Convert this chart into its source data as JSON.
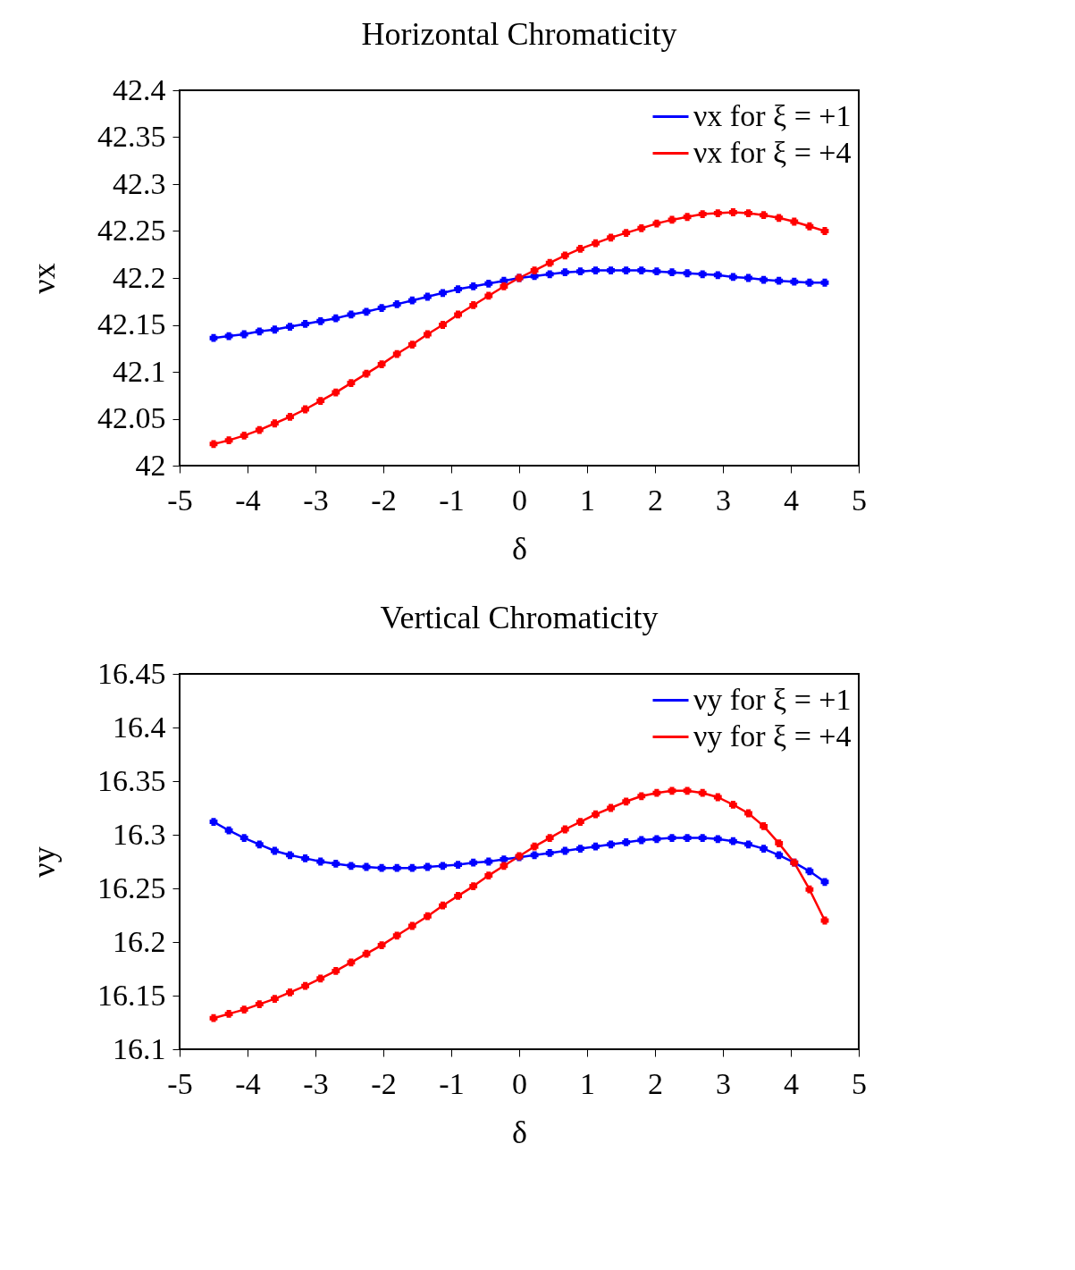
{
  "chart_data": [
    {
      "type": "line",
      "title": "Horizontal Chromaticity",
      "xlabel": "δ",
      "ylabel": "νx",
      "x": [
        -4.5,
        -4.275,
        -4.05,
        -3.825,
        -3.6,
        -3.375,
        -3.15,
        -2.925,
        -2.7,
        -2.475,
        -2.25,
        -2.025,
        -1.8,
        -1.575,
        -1.35,
        -1.125,
        -0.9,
        -0.675,
        -0.45,
        -0.225,
        0,
        0.225,
        0.45,
        0.675,
        0.9,
        1.125,
        1.35,
        1.575,
        1.8,
        2.025,
        2.25,
        2.475,
        2.7,
        2.925,
        3.15,
        3.375,
        3.6,
        3.825,
        4.05,
        4.275,
        4.5
      ],
      "series": [
        {
          "name": "νx for ξ = +1",
          "color": "#0000ff",
          "marker": "cross",
          "values": [
            42.136,
            42.138,
            42.14,
            42.143,
            42.145,
            42.148,
            42.151,
            42.154,
            42.157,
            42.161,
            42.164,
            42.168,
            42.172,
            42.176,
            42.18,
            42.184,
            42.188,
            42.191,
            42.194,
            42.197,
            42.2,
            42.202,
            42.204,
            42.206,
            42.207,
            42.208,
            42.208,
            42.208,
            42.208,
            42.207,
            42.206,
            42.205,
            42.204,
            42.203,
            42.201,
            42.2,
            42.198,
            42.197,
            42.196,
            42.195,
            42.195
          ]
        },
        {
          "name": "νx for ξ = +4",
          "color": "#ff0000",
          "marker": "cross",
          "values": [
            42.023,
            42.027,
            42.032,
            42.038,
            42.045,
            42.052,
            42.06,
            42.069,
            42.078,
            42.088,
            42.098,
            42.108,
            42.119,
            42.129,
            42.14,
            42.15,
            42.161,
            42.171,
            42.181,
            42.191,
            42.2,
            42.208,
            42.216,
            42.224,
            42.231,
            42.237,
            42.243,
            42.248,
            42.253,
            42.258,
            42.262,
            42.265,
            42.268,
            42.269,
            42.27,
            42.269,
            42.267,
            42.264,
            42.26,
            42.255,
            42.25
          ]
        }
      ],
      "xlim": [
        -5,
        5
      ],
      "xticks": [
        -5,
        -4,
        -3,
        -2,
        -1,
        0,
        1,
        2,
        3,
        4,
        5
      ],
      "ylim": [
        42,
        42.4
      ],
      "yticks": [
        42,
        42.05,
        42.1,
        42.15,
        42.2,
        42.25,
        42.3,
        42.35,
        42.4
      ],
      "grid": false,
      "legend": "top right",
      "line_style": "solid"
    },
    {
      "type": "line",
      "title": "Vertical Chromaticity",
      "xlabel": "δ",
      "ylabel": "νy",
      "x": [
        -4.5,
        -4.275,
        -4.05,
        -3.825,
        -3.6,
        -3.375,
        -3.15,
        -2.925,
        -2.7,
        -2.475,
        -2.25,
        -2.025,
        -1.8,
        -1.575,
        -1.35,
        -1.125,
        -0.9,
        -0.675,
        -0.45,
        -0.225,
        0,
        0.225,
        0.45,
        0.675,
        0.9,
        1.125,
        1.35,
        1.575,
        1.8,
        2.025,
        2.25,
        2.475,
        2.7,
        2.925,
        3.15,
        3.375,
        3.6,
        3.825,
        4.05,
        4.275,
        4.5
      ],
      "series": [
        {
          "name": "νy for ξ = +1",
          "color": "#0000ff",
          "marker": "cross",
          "values": [
            16.312,
            16.304,
            16.297,
            16.291,
            16.285,
            16.281,
            16.278,
            16.275,
            16.273,
            16.271,
            16.27,
            16.269,
            16.269,
            16.269,
            16.27,
            16.271,
            16.272,
            16.274,
            16.275,
            16.277,
            16.279,
            16.281,
            16.283,
            16.285,
            16.287,
            16.289,
            16.291,
            16.293,
            16.295,
            16.296,
            16.297,
            16.297,
            16.297,
            16.296,
            16.294,
            16.291,
            16.287,
            16.281,
            16.274,
            16.266,
            16.256
          ]
        },
        {
          "name": "νy for ξ = +4",
          "color": "#ff0000",
          "marker": "cross",
          "values": [
            16.129,
            16.133,
            16.137,
            16.142,
            16.147,
            16.153,
            16.159,
            16.166,
            16.173,
            16.181,
            16.189,
            16.197,
            16.206,
            16.215,
            16.224,
            16.234,
            16.243,
            16.252,
            16.262,
            16.271,
            16.28,
            16.289,
            16.297,
            16.305,
            16.312,
            16.319,
            16.325,
            16.331,
            16.336,
            16.339,
            16.341,
            16.341,
            16.339,
            16.335,
            16.328,
            16.32,
            16.308,
            16.292,
            16.274,
            16.249,
            16.22
          ]
        }
      ],
      "xlim": [
        -5,
        5
      ],
      "xticks": [
        -5,
        -4,
        -3,
        -2,
        -1,
        0,
        1,
        2,
        3,
        4,
        5
      ],
      "ylim": [
        16.1,
        16.45
      ],
      "yticks": [
        16.1,
        16.15,
        16.2,
        16.25,
        16.3,
        16.35,
        16.4,
        16.45
      ],
      "grid": false,
      "legend": "top right",
      "line_style": "solid"
    }
  ]
}
